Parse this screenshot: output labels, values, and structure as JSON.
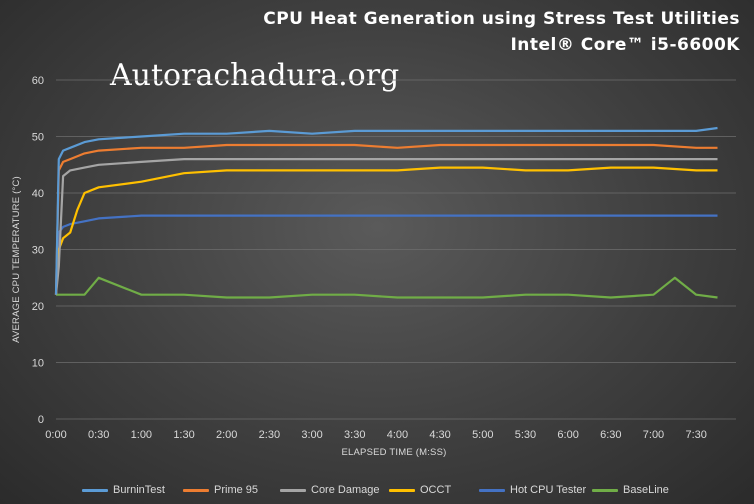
{
  "title": {
    "line1": "CPU Heat Generation  using  Stress Test Utilities",
    "line2": "Intel® Core™ i5-6600K"
  },
  "watermark": "Autorachadura.org",
  "chart_data": {
    "type": "line",
    "xlabel": "ELAPSED TIME (M:SS)",
    "ylabel": "AVERAGE CPU TEMPERATURE (°C)",
    "ylim": [
      0,
      60
    ],
    "yticks": [
      0,
      10,
      20,
      30,
      40,
      50,
      60
    ],
    "xlim": [
      "0:00",
      "7:58"
    ],
    "xticks": [
      "0:00",
      "0:30",
      "1:00",
      "1:30",
      "2:00",
      "2:30",
      "3:00",
      "3:30",
      "4:00",
      "4:30",
      "5:00",
      "5:30",
      "6:00",
      "6:30",
      "7:00",
      "7:30"
    ],
    "grid": true,
    "legend_position": "bottom",
    "series": [
      {
        "name": "BurninTest",
        "color": "#5b9bd5",
        "x": [
          "0:00",
          "0:02",
          "0:05",
          "0:10",
          "0:20",
          "0:30",
          "1:00",
          "1:30",
          "2:00",
          "2:30",
          "3:00",
          "3:30",
          "4:00",
          "4:30",
          "5:00",
          "5:30",
          "6:00",
          "6:30",
          "7:00",
          "7:30",
          "7:45"
        ],
        "values": [
          22,
          46,
          47.5,
          48,
          49,
          49.5,
          50,
          50.5,
          50.5,
          51,
          50.5,
          51,
          51,
          51,
          51,
          51,
          51,
          51,
          51,
          51,
          51.5
        ]
      },
      {
        "name": "Prime 95",
        "color": "#ed7d31",
        "x": [
          "0:00",
          "0:02",
          "0:05",
          "0:10",
          "0:20",
          "0:30",
          "1:00",
          "1:30",
          "2:00",
          "2:30",
          "3:00",
          "3:30",
          "4:00",
          "4:30",
          "5:00",
          "5:30",
          "6:00",
          "6:30",
          "7:00",
          "7:30",
          "7:45"
        ],
        "values": [
          22,
          44,
          45.5,
          46,
          47,
          47.5,
          48,
          48,
          48.5,
          48.5,
          48.5,
          48.5,
          48,
          48.5,
          48.5,
          48.5,
          48.5,
          48.5,
          48.5,
          48,
          48
        ]
      },
      {
        "name": "Core Damage",
        "color": "#a5a5a5",
        "x": [
          "0:00",
          "0:02",
          "0:05",
          "0:10",
          "0:20",
          "0:30",
          "1:00",
          "1:30",
          "2:00",
          "2:30",
          "3:00",
          "3:30",
          "4:00",
          "4:30",
          "5:00",
          "5:30",
          "6:00",
          "6:30",
          "7:00",
          "7:30",
          "7:45"
        ],
        "values": [
          22,
          27,
          43,
          44,
          44.5,
          45,
          45.5,
          46,
          46,
          46,
          46,
          46,
          46,
          46,
          46,
          46,
          46,
          46,
          46,
          46,
          46
        ]
      },
      {
        "name": "OCCT",
        "color": "#ffc000",
        "x": [
          "0:00",
          "0:02",
          "0:05",
          "0:10",
          "0:15",
          "0:20",
          "0:30",
          "1:00",
          "1:30",
          "2:00",
          "2:30",
          "3:00",
          "3:30",
          "4:00",
          "4:30",
          "5:00",
          "5:30",
          "6:00",
          "6:30",
          "7:00",
          "7:30",
          "7:45"
        ],
        "values": [
          22,
          30,
          32,
          33,
          37,
          40,
          41,
          42,
          43.5,
          44,
          44,
          44,
          44,
          44,
          44.5,
          44.5,
          44,
          44,
          44.5,
          44.5,
          44,
          44
        ]
      },
      {
        "name": "Hot CPU Tester",
        "color": "#4472c4",
        "x": [
          "0:00",
          "0:02",
          "0:05",
          "0:10",
          "0:20",
          "0:30",
          "1:00",
          "1:30",
          "2:00",
          "2:30",
          "3:00",
          "3:30",
          "4:00",
          "4:30",
          "5:00",
          "5:30",
          "6:00",
          "6:30",
          "7:00",
          "7:30",
          "7:45"
        ],
        "values": [
          22,
          33,
          34,
          34.5,
          35,
          35.5,
          36,
          36,
          36,
          36,
          36,
          36,
          36,
          36,
          36,
          36,
          36,
          36,
          36,
          36,
          36
        ]
      },
      {
        "name": "BaseLine",
        "color": "#70ad47",
        "x": [
          "0:00",
          "0:10",
          "0:20",
          "0:30",
          "1:00",
          "1:30",
          "2:00",
          "2:30",
          "3:00",
          "3:30",
          "4:00",
          "4:30",
          "5:00",
          "5:30",
          "6:00",
          "6:30",
          "7:00",
          "7:15",
          "7:30",
          "7:45"
        ],
        "values": [
          22,
          22,
          22,
          25,
          22,
          22,
          21.5,
          21.5,
          22,
          22,
          21.5,
          21.5,
          21.5,
          22,
          22,
          21.5,
          22,
          25,
          22,
          21.5
        ]
      }
    ]
  }
}
